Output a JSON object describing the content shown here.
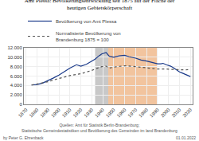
{
  "chart_data": {
    "type": "line",
    "title": "Amt Plessa: Bevölkerungsentwicklung seit 1875 auf der Fläche der\nheutigen Gebietskörperschaft",
    "series": [
      {
        "name": "Bevölkerung von Amt Plessa",
        "color": "#1a3a8a",
        "line_style": "solid",
        "x": [
          1875,
          1880,
          1885,
          1890,
          1895,
          1900,
          1905,
          1910,
          1916,
          1920,
          1925,
          1930,
          1933,
          1936,
          1939,
          1943,
          1946,
          1950,
          1955,
          1960,
          1964,
          1970,
          1975,
          1980,
          1985,
          1990,
          1993,
          1995,
          1998,
          2000,
          2002,
          2005,
          2008,
          2010,
          2012,
          2015,
          2018,
          2020
        ],
        "values": [
          4100,
          4200,
          4500,
          5000,
          5600,
          6200,
          7000,
          7700,
          8400,
          8100,
          8500,
          9200,
          9600,
          10200,
          10700,
          11000,
          10200,
          10000,
          10300,
          10400,
          10100,
          9800,
          9400,
          9200,
          8900,
          8600,
          8600,
          8700,
          8400,
          8300,
          8100,
          7700,
          7200,
          6900,
          6700,
          6400,
          6100,
          5900
        ]
      },
      {
        "name": "Normalisierte Bevölkerung von\nBrandenburg 1875 = 100",
        "color": "#555555",
        "line_style": "dotted",
        "x": [
          1875,
          1880,
          1890,
          1900,
          1910,
          1920,
          1925,
          1930,
          1933,
          1939,
          1943,
          1946,
          1950,
          1960,
          1970,
          1980,
          1985,
          1990,
          1993,
          1995,
          1998,
          2000,
          2005,
          2010,
          2015,
          2020
        ],
        "values": [
          4100,
          4300,
          4800,
          5500,
          6100,
          6500,
          6800,
          7200,
          7500,
          8000,
          8100,
          7700,
          7900,
          8200,
          8000,
          7700,
          7600,
          7500,
          7500,
          7550,
          7500,
          7450,
          7400,
          7350,
          7300,
          7400
        ]
      }
    ],
    "xlim": [
      1868,
      2022
    ],
    "xticks": [
      1870,
      1880,
      1890,
      1900,
      1910,
      1920,
      1930,
      1940,
      1950,
      1960,
      1970,
      1980,
      1990,
      2000,
      2010,
      2020
    ],
    "ylim": [
      0,
      12000
    ],
    "yticks": [
      0,
      {
        "value": 2000,
        "label": "2.000"
      },
      {
        "value": 4000,
        "label": "4.000"
      },
      {
        "value": 6000,
        "label": "6.000"
      },
      {
        "value": 8000,
        "label": "8.000"
      },
      {
        "value": 10000,
        "label": "10.000"
      },
      {
        "value": 12000,
        "label": "12.000"
      }
    ],
    "grid": true,
    "legend": "upper left",
    "shaded_regions": [
      {
        "start": 1933,
        "end": 1945,
        "color": "#c8c8c8"
      },
      {
        "start": 1945,
        "end": 1990,
        "color": "#f2c49e"
      }
    ],
    "annotations": [
      "Quellen: Amt für Statistik Berlin-Brandenburg;\nStatistische Gemeindestatistiken und Bevölkerung des Gemeinden im land Brandenburg",
      "by Peter G. Ehrenback",
      "01.01.2022"
    ]
  }
}
